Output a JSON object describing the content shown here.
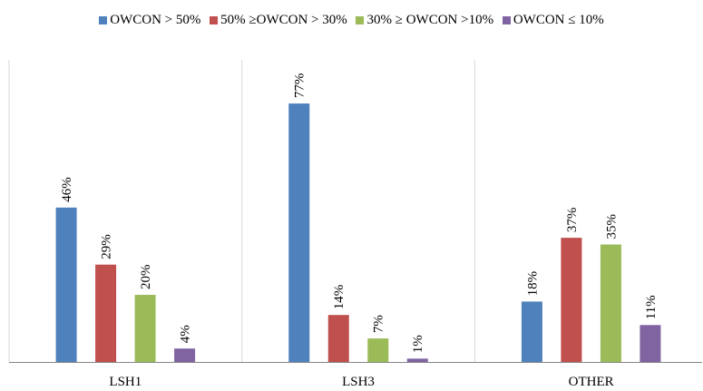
{
  "chart_data": {
    "type": "bar",
    "categories": [
      "LSH1",
      "LSH3",
      "OTHER"
    ],
    "series": [
      {
        "name": "OWCON > 50%",
        "color": "#4F81BD",
        "values": [
          46,
          77,
          18
        ],
        "labels": [
          "46%",
          "77%",
          "18%"
        ]
      },
      {
        "name": "50% ≥OWCON > 30%",
        "color": "#C0504D",
        "values": [
          29,
          14,
          37
        ],
        "labels": [
          "29%",
          "14%",
          "37%"
        ]
      },
      {
        "name": "30% ≥ OWCON >10%",
        "color": "#9BBB59",
        "values": [
          20,
          7,
          35
        ],
        "labels": [
          "20%",
          "7%",
          "35%"
        ]
      },
      {
        "name": "OWCON ≤ 10%",
        "color": "#8064A2",
        "values": [
          4,
          1,
          11
        ],
        "labels": [
          "4%",
          "1%",
          "11%"
        ]
      }
    ],
    "title": "",
    "xlabel": "",
    "ylabel": "",
    "ylim": [
      0,
      85
    ],
    "grid": "vertical category separators",
    "legend": "top",
    "data_labels": "rotated above bars"
  }
}
